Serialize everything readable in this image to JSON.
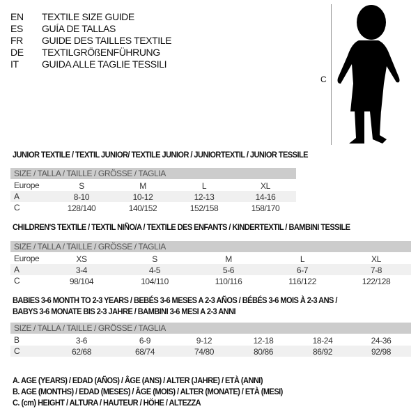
{
  "languages": [
    {
      "code": "EN",
      "title": "TEXTILE SIZE GUIDE"
    },
    {
      "code": "ES",
      "title": "GUÍA DE TALLAS"
    },
    {
      "code": "FR",
      "title": "GUIDE DES TAILLES TEXTILE"
    },
    {
      "code": "DE",
      "title": "TEXTILGRÖßENFÜHRUNG"
    },
    {
      "code": "IT",
      "title": "GUIDA ALLE TAGLIE TESSILI"
    }
  ],
  "figure": {
    "measure_label": "C"
  },
  "sections": [
    {
      "title": "JUNIOR TEXTILE / TEXTIL JUNIOR/ TEXTILE JUNIOR / JUNIORTEXTIL / JUNIOR TESSILE",
      "header": "SIZE / TALLA / TAILLE / GRÖSSE / TAGLIA",
      "rows": [
        {
          "label": "Europe",
          "values": [
            "S",
            "M",
            "L",
            "XL"
          ]
        },
        {
          "label": "A",
          "values": [
            "8-10",
            "10-12",
            "12-13",
            "14-16"
          ]
        },
        {
          "label": "C",
          "values": [
            "128/140",
            "140/152",
            "152/158",
            "158/170"
          ]
        }
      ]
    },
    {
      "title": "CHILDREN'S TEXTILE / TEXTIL NIÑO/A / TEXTILE DES ENFANTS / KINDERTEXTIL / BAMBINI TESSILE",
      "header": "SIZE / TALLA / TAILLE / GRÖSSE / TAGLIA",
      "rows": [
        {
          "label": "Europe",
          "values": [
            "XS",
            "S",
            "M",
            "L",
            "XL"
          ]
        },
        {
          "label": "A",
          "values": [
            "3-4",
            "4-5",
            "5-6",
            "6-7",
            "7-8"
          ]
        },
        {
          "label": "C",
          "values": [
            "98/104",
            "104/110",
            "110/116",
            "116/122",
            "122/128"
          ]
        }
      ]
    },
    {
      "title": "BABIES 3-6 MONTH TO 2-3 YEARS / BEBÉS 3-6 MESES A 2-3 AÑOS / BÉBÉS 3-6 MOIS À 2-3 ANS /",
      "title2": "BABYS 3-6 MONATE BIS 2-3 JAHRE / BAMBINI 3-6 MESI A 2-3 ANNI",
      "header": "SIZE / TALLA / TAILLE / GRÖSSE / TAGLIA",
      "rows": [
        {
          "label": "B",
          "values": [
            "3-6",
            "6-9",
            "9-12",
            "12-18",
            "18-24",
            "24-36"
          ]
        },
        {
          "label": "C",
          "values": [
            "62/68",
            "68/74",
            "74/80",
            "80/86",
            "86/92",
            "92/98"
          ]
        }
      ]
    }
  ],
  "legend": [
    "A. AGE (YEARS) / EDAD (AÑOS) / ÂGE (ANS) / ALTER (JAHRE) / ETÀ (ANNI)",
    "B. AGE (MONTHS) / EDAD (MESES) / ÂGE (MOIS) / ALTER (MONATE) / ETÀ (MESI)",
    "C. (cm) HEIGHT / ALTURA / HAUTEUR / HÖHE / ALTEZZA"
  ]
}
